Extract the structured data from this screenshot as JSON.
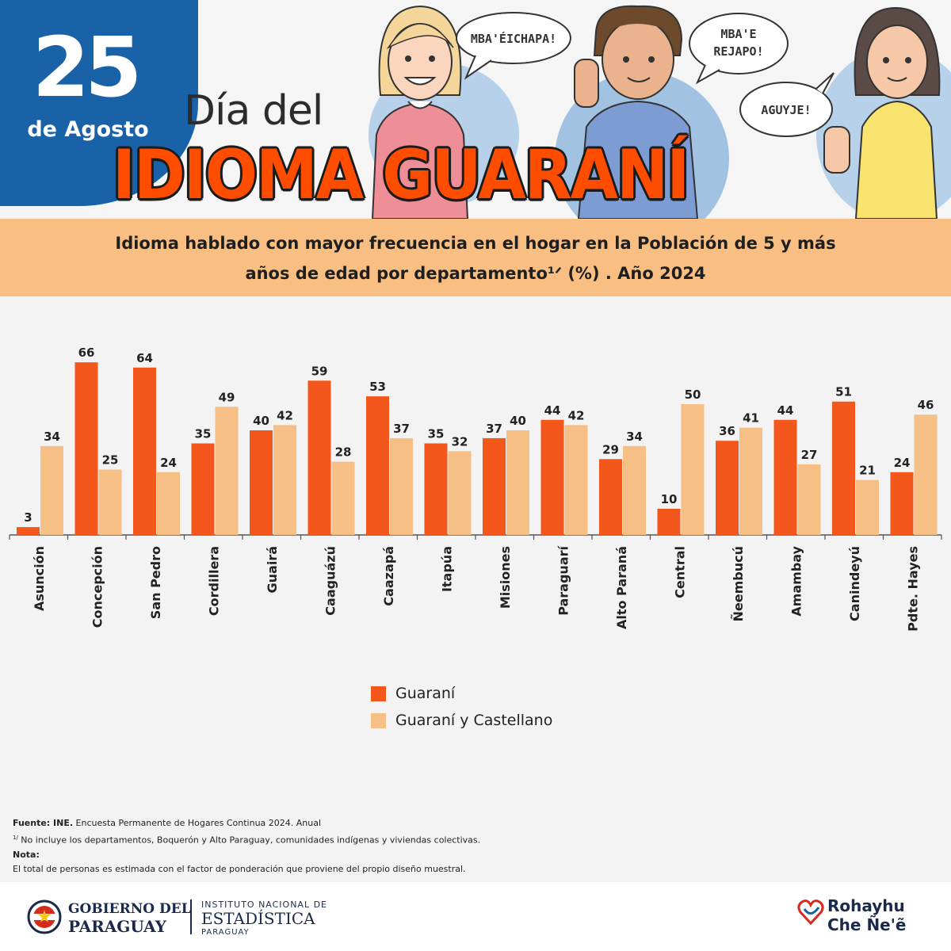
{
  "header": {
    "day_number": "25",
    "month_label": "de Agosto",
    "title_line1": "Día del",
    "title_line2": "IDIOMA GUARANÍ",
    "speech_bubbles": [
      "MBA'ÉICHAPA!",
      "MBA'E",
      "REJAPO!",
      "AGUYJE!"
    ]
  },
  "subtitle": {
    "line1": "Idioma hablado con mayor frecuencia en el hogar en la Población de 5 y más",
    "line2": "años de edad por departamento¹ᐟ (%) . Año 2024"
  },
  "chart_data": {
    "type": "bar",
    "categories": [
      "Asunción",
      "Concepción",
      "San Pedro",
      "Cordillera",
      "Guairá",
      "Caaguázú",
      "Caazapá",
      "Itapúa",
      "Misiones",
      "Paraguarí",
      "Alto Paraná",
      "Central",
      "Ñeembucú",
      "Amambay",
      "Canindeyú",
      "Pdte. Hayes"
    ],
    "series": [
      {
        "name": "Guaraní",
        "color": "#f4571b",
        "values": [
          3,
          66,
          64,
          35,
          40,
          59,
          53,
          35,
          37,
          44,
          29,
          10,
          36,
          44,
          51,
          24
        ]
      },
      {
        "name": "Guaraní y Castellano",
        "color": "#f6bf85",
        "values": [
          34,
          25,
          24,
          49,
          42,
          28,
          37,
          32,
          40,
          42,
          34,
          50,
          41,
          27,
          21,
          46
        ]
      }
    ],
    "ylim": [
      0,
      70
    ],
    "grid": false,
    "legend": "bottom-center"
  },
  "notes": {
    "source_label": "Fuente: INE.",
    "source_text": " Encuesta Permanente de Hogares Continua 2024. Anual",
    "footnote_mark": "1/",
    "footnote_text": " No incluye los departamentos, Boquerón y Alto Paraguay, comunidades indígenas y viviendas colectivas.",
    "note_label": "Nota:",
    "note_text": "El total de personas es estimada con el factor de ponderación que proviene del propio diseño muestral."
  },
  "footer": {
    "gov_line1": "GOBIERNO DEL",
    "gov_line2": "PARAGUAY",
    "ine_line1": "INSTITUTO NACIONAL DE",
    "ine_line2": "ESTADÍSTICA",
    "ine_line3": "PARAGUAY",
    "brand_line1": "Rohayhu",
    "brand_line2": "Che Ñe'ẽ"
  }
}
